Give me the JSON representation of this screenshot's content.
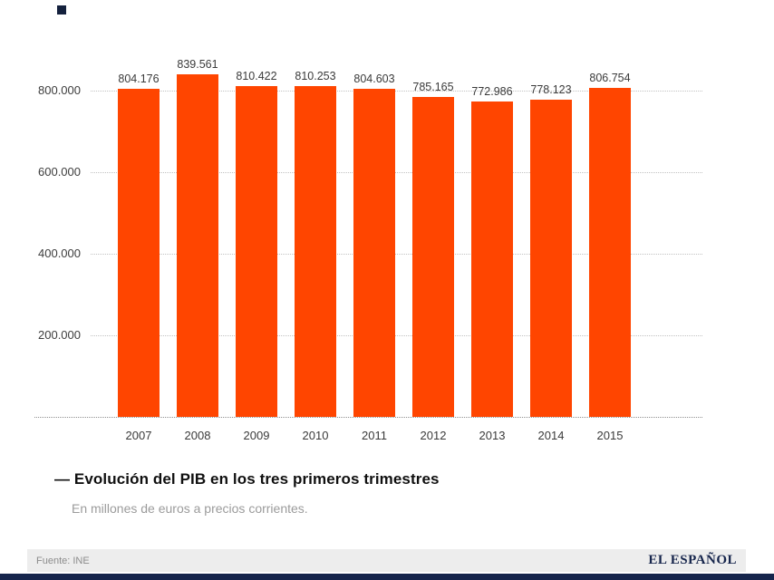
{
  "chart_data": {
    "type": "bar",
    "categories": [
      "2007",
      "2008",
      "2009",
      "2010",
      "2011",
      "2012",
      "2013",
      "2014",
      "2015"
    ],
    "values": [
      804176,
      839561,
      810422,
      810253,
      804603,
      785165,
      772986,
      778123,
      806754
    ],
    "value_labels": [
      "804.176",
      "839.561",
      "810.422",
      "810.253",
      "804.603",
      "785.165",
      "772.986",
      "778.123",
      "806.754"
    ],
    "title": "— Evolución del PIB en los tres primeros trimestres",
    "subtitle": "En millones de euros a precios corrientes.",
    "xlabel": "",
    "ylabel": "",
    "ylim": [
      0,
      900000
    ],
    "yticks": [
      200000,
      400000,
      600000,
      800000
    ],
    "ytick_labels": [
      "200.000",
      "400.000",
      "600.000",
      "800.000"
    ],
    "grid": "horizontal dotted",
    "legend": "none",
    "bar_color": "#ff4500"
  },
  "footer": {
    "source": "Fuente: INE",
    "brand": "EL ESPAÑOL"
  },
  "colors": {
    "bar": "#ff4500",
    "brand_navy": "#16254c",
    "grid": "#c2c2c2",
    "footer_bg": "#ededed"
  }
}
